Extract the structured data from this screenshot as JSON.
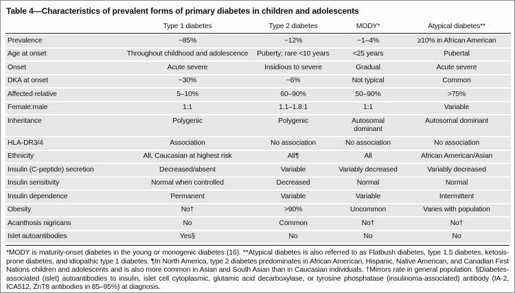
{
  "title": "Table 4—Characteristics of prevalent forms of primary diabetes in children and adolescents",
  "table": {
    "columns": [
      "",
      "Type 1 diabetes",
      "Type 2 diabetes",
      "MODY*",
      "Atypical diabetes**"
    ],
    "rows": [
      {
        "label": "Prevalence",
        "cells": [
          "~85%",
          "~12%",
          "~1–4%",
          "≥10% in African American"
        ]
      },
      {
        "label": "Age at onset",
        "cells": [
          "Throughout childhood and adolescence",
          "Puberty; rare <10 years",
          "<25 years",
          "Pubertal"
        ]
      },
      {
        "label": "Onset",
        "cells": [
          "Acute severe",
          "Insidious to severe",
          "Gradual",
          "Acute severe"
        ]
      },
      {
        "label": "DKA at onset",
        "cells": [
          "~30%",
          "~6%",
          "Not typical",
          "Common"
        ]
      },
      {
        "label": "Affected relative",
        "cells": [
          "5–10%",
          "60–90%",
          "50–90%",
          ">75%"
        ]
      },
      {
        "label": "Female:male",
        "cells": [
          "1:1",
          "1.1–1.8:1",
          "1:1",
          "Variable"
        ]
      },
      {
        "label": "Inheritance",
        "cells": [
          "Polygenic",
          "Polygenic",
          "Autosomal\ndominant",
          "Autosomal dominant"
        ]
      },
      {
        "label": "HLA-DR3/4",
        "cells": [
          "Association",
          "No association",
          "No association",
          "No association"
        ]
      },
      {
        "label": "Ethnicity",
        "cells": [
          "All, Caucasian at highest risk",
          "All¶",
          "All",
          "African American/Asian"
        ]
      },
      {
        "label": "Insulin (C-peptide) secretion",
        "cells": [
          "Decreased/absent",
          "Variable",
          "Variably decreased",
          "Variably decreased"
        ]
      },
      {
        "label": "Insulin sensitivity",
        "cells": [
          "Normal when controlled",
          "Decreased",
          "Normal",
          "Normal"
        ]
      },
      {
        "label": "Insulin dependence",
        "cells": [
          "Permanent",
          "Variable",
          "Variable",
          "Intermittent"
        ]
      },
      {
        "label": "Obesity",
        "cells": [
          "No†",
          ">90%",
          "Uncommon",
          "Varies with population"
        ]
      },
      {
        "label": "Acanthosis nigricans",
        "cells": [
          "No",
          "Common",
          "No†",
          "No†"
        ]
      },
      {
        "label": "Islet autoantibodies",
        "cells": [
          "Yes§",
          "No",
          "No",
          "No"
        ]
      }
    ]
  },
  "footnote": "*MODY is maturity-onset diabetes in the young or monogenic diabetes (16). **Atypical diabetes is also referred to as Flatbush diabetes, type 1.5 diabetes, ketosis-prone diabetes, and idiopathic type 1 diabetes. ¶In North America, type 2 diabetes predominates in African American, Hispanic, Native American, and Canadian First Nations children and adolescents and is also more common in Asian and South Asian than in Caucasian individuals. †Mirrors rate in general population. §Diabetes-associated (islet) autoantibodies to insulin, islet cell cytoplasmic, glutamic acid decarboxylase, or tyrosine phosphatase (insulinoma-associated) antibody (IA-2, ICA512, ZnT8 antibodies in 85–95%) at diagnosis.",
  "colors": {
    "row_band": "#e6e6e6",
    "rule": "#1c1c1c",
    "border": "#8a8a8a"
  }
}
